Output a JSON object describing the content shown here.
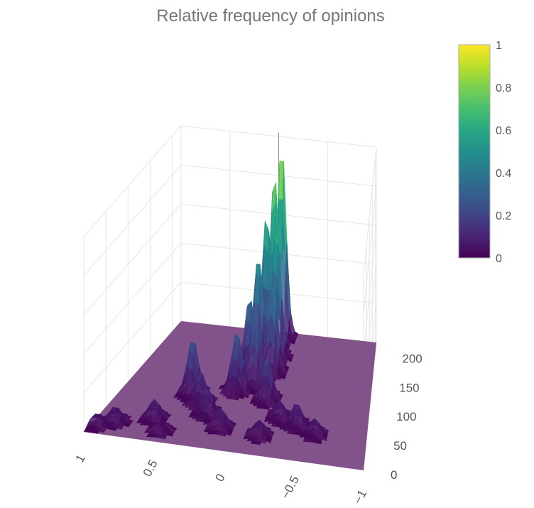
{
  "chart_data": {
    "type": "surface3d",
    "title": "Relative frequency of opinions",
    "colorscale": "viridis",
    "colors": {
      "title": "#777777",
      "tick_text": "#555555",
      "grid": "#e6e6e6",
      "axis_line": "#888888",
      "colorbar_border": "#aaaaaa",
      "floor": "#82538a"
    },
    "colorbar": {
      "ticks": [
        "0",
        "0.2",
        "0.4",
        "0.6",
        "0.8",
        "1"
      ],
      "range": [
        0,
        1
      ]
    },
    "x_axis": {
      "ticks": [
        "1",
        "0.5",
        "0",
        "−0.5",
        "−1"
      ],
      "range": [
        -1,
        1
      ],
      "label": ""
    },
    "y_axis": {
      "ticks": [
        "0",
        "50",
        "100",
        "150",
        "200"
      ],
      "range": [
        0,
        220
      ],
      "label": ""
    },
    "z_axis": {
      "range": [
        0,
        1
      ],
      "label": ""
    },
    "peaks": [
      {
        "x": -0.05,
        "y": 212,
        "z": 1.0
      },
      {
        "x": -0.02,
        "y": 195,
        "z": 0.88
      },
      {
        "x": 0.02,
        "y": 180,
        "z": 0.72
      },
      {
        "x": -0.08,
        "y": 175,
        "z": 0.68
      },
      {
        "x": 0.05,
        "y": 160,
        "z": 0.55
      },
      {
        "x": -0.1,
        "y": 150,
        "z": 0.45
      },
      {
        "x": 0.08,
        "y": 140,
        "z": 0.4
      },
      {
        "x": 0.0,
        "y": 125,
        "z": 0.32
      },
      {
        "x": 0.12,
        "y": 110,
        "z": 0.3
      },
      {
        "x": -0.15,
        "y": 100,
        "z": 0.22
      },
      {
        "x": 0.45,
        "y": 95,
        "z": 0.28
      },
      {
        "x": 0.35,
        "y": 80,
        "z": 0.16
      },
      {
        "x": 0.25,
        "y": 60,
        "z": 0.14
      },
      {
        "x": 0.6,
        "y": 40,
        "z": 0.1
      },
      {
        "x": 0.85,
        "y": 25,
        "z": 0.08
      },
      {
        "x": 0.95,
        "y": 15,
        "z": 0.06
      },
      {
        "x": -0.3,
        "y": 70,
        "z": 0.09
      },
      {
        "x": -0.45,
        "y": 60,
        "z": 0.12
      },
      {
        "x": -0.6,
        "y": 50,
        "z": 0.08
      },
      {
        "x": -0.2,
        "y": 35,
        "z": 0.08
      },
      {
        "x": 0.1,
        "y": 40,
        "z": 0.1
      },
      {
        "x": 0.5,
        "y": 20,
        "z": 0.05
      }
    ]
  }
}
